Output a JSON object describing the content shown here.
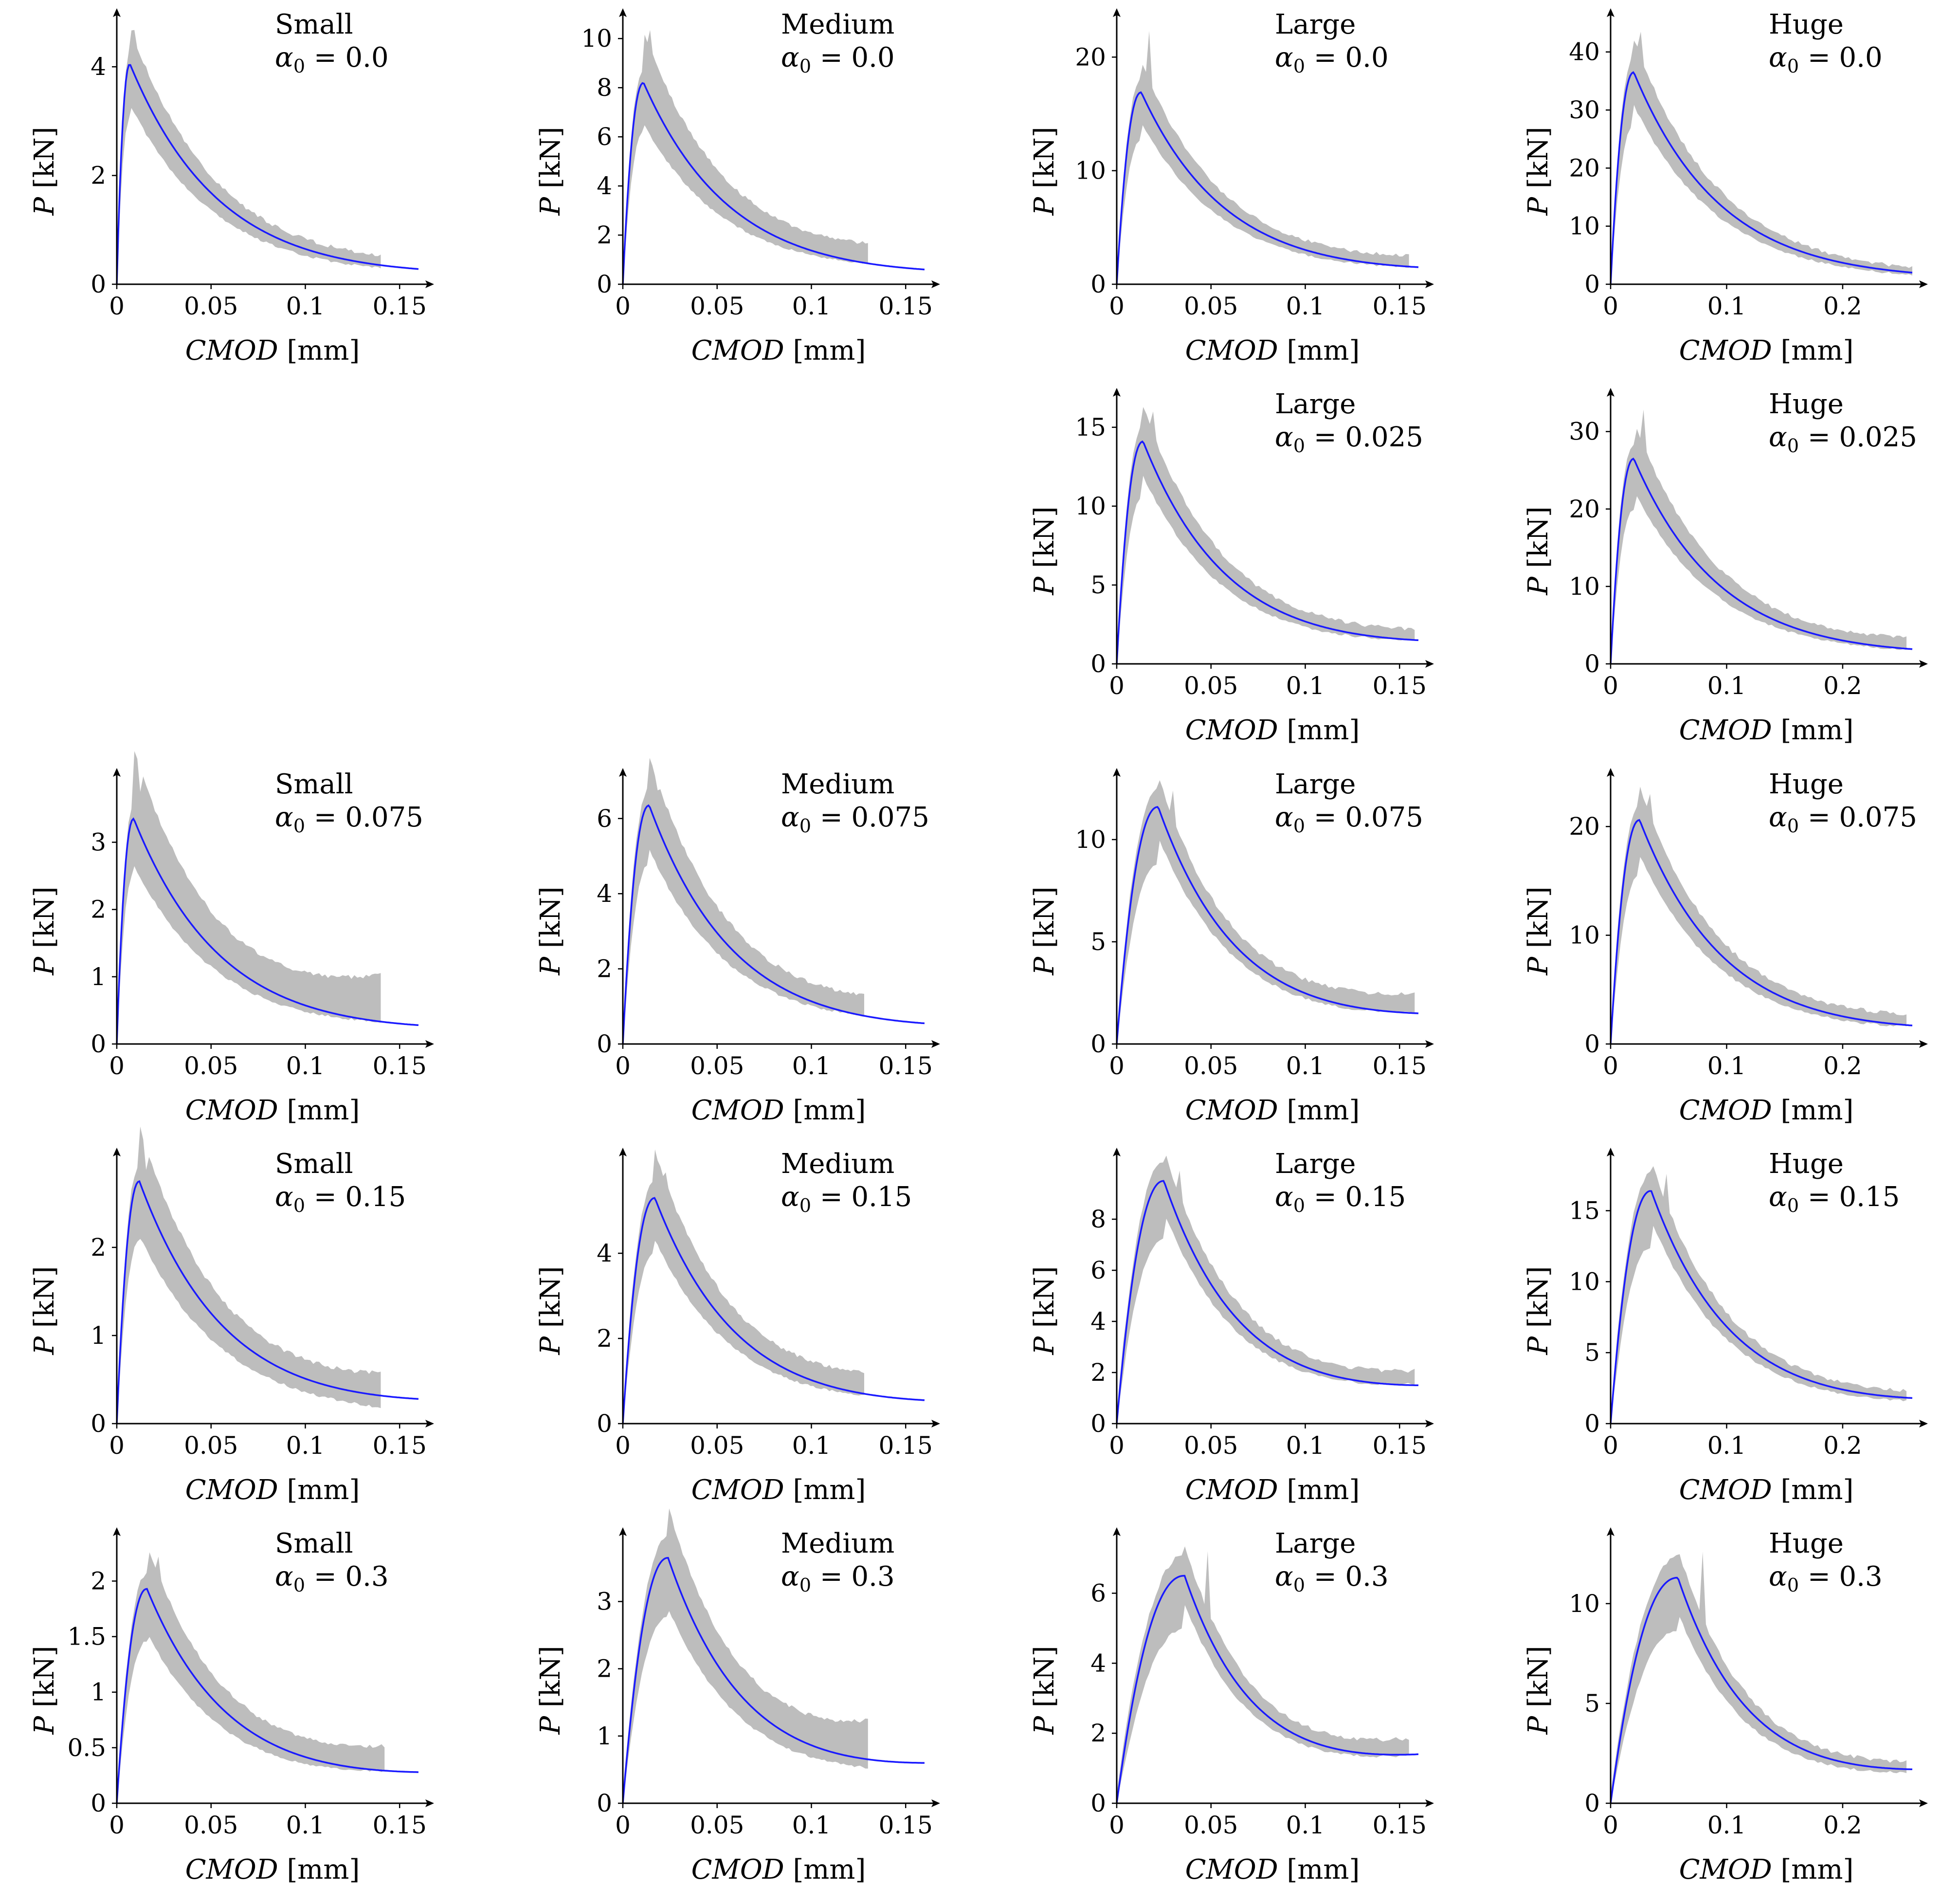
{
  "figure": {
    "axis_text": {
      "x_var": "CMOD",
      "x_unit": "[mm]",
      "y_var": "P",
      "y_unit": "[kN]",
      "alpha_symbol": "α",
      "alpha_sub": "0"
    },
    "colors": {
      "band": "#bdbdbd",
      "model": "#1a1aff",
      "axes": "#000000"
    },
    "rows": 5,
    "cols": 4
  },
  "chart_data": [
    {
      "id": "small-a0",
      "type": "line",
      "row": 0,
      "col": 0,
      "size": "Small",
      "alpha_label": "= 0.0",
      "xlabel": "CMOD [mm]",
      "ylabel": "P [kN]",
      "xlim": [
        0,
        0.16
      ],
      "ylim": [
        0,
        4.7
      ],
      "xticks": [
        0,
        0.05,
        0.1,
        0.15
      ],
      "xtick_labels": [
        "0",
        "0.05",
        "0.1",
        "0.15"
      ],
      "yticks": [
        0,
        2,
        4
      ],
      "ytick_labels": [
        "0",
        "2",
        "4"
      ],
      "peak_x": 0.007,
      "peak_y": 4.05,
      "end_x": 0.16,
      "end_y": 0.28,
      "band_end_x": 0.14,
      "band_end_lo": 0.32,
      "band_end_hi": 0.5,
      "band_lo_f": 0.82,
      "band_hi_f": 1.16,
      "spike_y": 4.7
    },
    {
      "id": "medium-a0",
      "type": "line",
      "row": 0,
      "col": 1,
      "size": "Medium",
      "alpha_label": "= 0.0",
      "xlabel": "CMOD [mm]",
      "ylabel": "P [kN]",
      "xlim": [
        0,
        0.16
      ],
      "ylim": [
        0,
        10.4
      ],
      "xticks": [
        0,
        0.05,
        0.1,
        0.15
      ],
      "xtick_labels": [
        "0",
        "0.05",
        "0.1",
        "0.15"
      ],
      "yticks": [
        0,
        2,
        4,
        6,
        8,
        10
      ],
      "ytick_labels": [
        "0",
        "2",
        "4",
        "6",
        "8",
        "10"
      ],
      "peak_x": 0.011,
      "peak_y": 8.2,
      "end_x": 0.16,
      "end_y": 0.6,
      "band_end_x": 0.13,
      "band_end_lo": 0.9,
      "band_end_hi": 1.6,
      "band_lo_f": 0.8,
      "band_hi_f": 1.25,
      "spike_y": 10.4
    },
    {
      "id": "large-a0",
      "type": "line",
      "row": 0,
      "col": 2,
      "size": "Large",
      "alpha_label": "= 0.0",
      "xlabel": "CMOD [mm]",
      "ylabel": "P [kN]",
      "xlim": [
        0,
        0.16
      ],
      "ylim": [
        0,
        22.5
      ],
      "xticks": [
        0,
        0.05,
        0.1,
        0.15
      ],
      "xtick_labels": [
        "0",
        "0.05",
        "0.1",
        "0.15"
      ],
      "yticks": [
        0,
        10,
        20
      ],
      "ytick_labels": [
        "0",
        "10",
        "20"
      ],
      "peak_x": 0.013,
      "peak_y": 16.9,
      "end_x": 0.16,
      "end_y": 1.5,
      "band_end_x": 0.155,
      "band_end_lo": 1.6,
      "band_end_hi": 2.4,
      "band_lo_f": 0.85,
      "band_hi_f": 1.15,
      "spike_y": 22.3
    },
    {
      "id": "huge-a0",
      "type": "line",
      "row": 0,
      "col": 3,
      "size": "Huge",
      "alpha_label": "= 0.0",
      "xlabel": "CMOD [mm]",
      "ylabel": "P [kN]",
      "xlim": [
        0,
        0.26
      ],
      "ylim": [
        0,
        44
      ],
      "xticks": [
        0,
        0.1,
        0.2
      ],
      "xtick_labels": [
        "0",
        "0.1",
        "0.2"
      ],
      "yticks": [
        0,
        10,
        20,
        30,
        40
      ],
      "ytick_labels": [
        "0",
        "10",
        "20",
        "30",
        "40"
      ],
      "peak_x": 0.02,
      "peak_y": 36.5,
      "end_x": 0.26,
      "end_y": 2.0,
      "band_end_x": 0.26,
      "band_end_lo": 1.8,
      "band_end_hi": 2.6,
      "band_lo_f": 0.85,
      "band_hi_f": 1.15,
      "spike_y": 43.5
    },
    {
      "id": "large-a025",
      "type": "line",
      "row": 1,
      "col": 2,
      "size": "Large",
      "alpha_label": "= 0.025",
      "xlabel": "CMOD [mm]",
      "ylabel": "P [kN]",
      "xlim": [
        0,
        0.16
      ],
      "ylim": [
        0,
        16.2
      ],
      "xticks": [
        0,
        0.05,
        0.1,
        0.15
      ],
      "xtick_labels": [
        "0",
        "0.05",
        "0.1",
        "0.15"
      ],
      "yticks": [
        0,
        5,
        10,
        15
      ],
      "ytick_labels": [
        "0",
        "5",
        "10",
        "15"
      ],
      "peak_x": 0.014,
      "peak_y": 14.1,
      "end_x": 0.16,
      "end_y": 1.5,
      "band_end_x": 0.158,
      "band_end_lo": 1.6,
      "band_end_hi": 2.1,
      "band_lo_f": 0.85,
      "band_hi_f": 1.15,
      "spike_y": 16.0
    },
    {
      "id": "huge-a025",
      "type": "line",
      "row": 1,
      "col": 3,
      "size": "Huge",
      "alpha_label": "= 0.025",
      "xlabel": "CMOD [mm]",
      "ylabel": "P [kN]",
      "xlim": [
        0,
        0.26
      ],
      "ylim": [
        0,
        33
      ],
      "xticks": [
        0,
        0.1,
        0.2
      ],
      "xtick_labels": [
        "0",
        "0.1",
        "0.2"
      ],
      "yticks": [
        0,
        10,
        20,
        30
      ],
      "ytick_labels": [
        "0",
        "10",
        "20",
        "30"
      ],
      "peak_x": 0.02,
      "peak_y": 26.5,
      "end_x": 0.26,
      "end_y": 1.9,
      "band_end_x": 0.255,
      "band_end_lo": 2.0,
      "band_end_hi": 3.2,
      "band_lo_f": 0.85,
      "band_hi_f": 1.18,
      "spike_y": 33.0
    },
    {
      "id": "small-a075",
      "type": "line",
      "row": 2,
      "col": 0,
      "size": "Small",
      "alpha_label": "= 0.075",
      "xlabel": "CMOD [mm]",
      "ylabel": "P [kN]",
      "xlim": [
        0,
        0.16
      ],
      "ylim": [
        0,
        3.8
      ],
      "xticks": [
        0,
        0.05,
        0.1,
        0.15
      ],
      "xtick_labels": [
        "0",
        "0.05",
        "0.1",
        "0.15"
      ],
      "yticks": [
        0,
        1,
        2,
        3
      ],
      "ytick_labels": [
        "0",
        "1",
        "2",
        "3"
      ],
      "peak_x": 0.009,
      "peak_y": 3.35,
      "end_x": 0.16,
      "end_y": 0.28,
      "band_end_x": 0.14,
      "band_end_lo": 0.35,
      "band_end_hi": 1.0,
      "band_lo_f": 0.8,
      "band_hi_f": 1.3,
      "spike_y": 3.75
    },
    {
      "id": "medium-a075",
      "type": "line",
      "row": 2,
      "col": 1,
      "size": "Medium",
      "alpha_label": "= 0.075",
      "xlabel": "CMOD [mm]",
      "ylabel": "P [kN]",
      "xlim": [
        0,
        0.16
      ],
      "ylim": [
        0,
        6.8
      ],
      "xticks": [
        0,
        0.05,
        0.1,
        0.15
      ],
      "xtick_labels": [
        "0",
        "0.05",
        "0.1",
        "0.15"
      ],
      "yticks": [
        0,
        2,
        4,
        6
      ],
      "ytick_labels": [
        "0",
        "2",
        "4",
        "6"
      ],
      "peak_x": 0.014,
      "peak_y": 6.35,
      "end_x": 0.16,
      "end_y": 0.55,
      "band_end_x": 0.128,
      "band_end_lo": 0.8,
      "band_end_hi": 1.25,
      "band_lo_f": 0.82,
      "band_hi_f": 1.2,
      "spike_y": 6.75
    },
    {
      "id": "large-a075",
      "type": "line",
      "row": 2,
      "col": 2,
      "size": "Large",
      "alpha_label": "= 0.075",
      "xlabel": "CMOD [mm]",
      "ylabel": "P [kN]",
      "xlim": [
        0,
        0.16
      ],
      "ylim": [
        0,
        12.5
      ],
      "xticks": [
        0,
        0.05,
        0.1,
        0.15
      ],
      "xtick_labels": [
        "0",
        "0.05",
        "0.1",
        "0.15"
      ],
      "yticks": [
        0,
        5,
        10
      ],
      "ytick_labels": [
        "0",
        "5",
        "10"
      ],
      "peak_x": 0.022,
      "peak_y": 11.6,
      "end_x": 0.16,
      "end_y": 1.5,
      "band_end_x": 0.158,
      "band_end_lo": 1.6,
      "band_end_hi": 2.4,
      "band_lo_f": 0.88,
      "band_hi_f": 1.12,
      "spike_y": 12.4
    },
    {
      "id": "huge-a075",
      "type": "line",
      "row": 2,
      "col": 3,
      "size": "Huge",
      "alpha_label": "= 0.075",
      "xlabel": "CMOD [mm]",
      "ylabel": "P [kN]",
      "xlim": [
        0,
        0.26
      ],
      "ylim": [
        0,
        23.5
      ],
      "xticks": [
        0,
        0.1,
        0.2
      ],
      "xtick_labels": [
        "0",
        "0.1",
        "0.2"
      ],
      "yticks": [
        0,
        10,
        20
      ],
      "ytick_labels": [
        "0",
        "10",
        "20"
      ],
      "peak_x": 0.025,
      "peak_y": 20.6,
      "end_x": 0.26,
      "end_y": 1.7,
      "band_end_x": 0.255,
      "band_end_lo": 1.7,
      "band_end_hi": 2.6,
      "band_lo_f": 0.85,
      "band_hi_f": 1.14,
      "spike_y": 23.0
    },
    {
      "id": "small-a15",
      "type": "line",
      "row": 3,
      "col": 0,
      "size": "Small",
      "alpha_label": "= 0.15",
      "xlabel": "CMOD [mm]",
      "ylabel": "P [kN]",
      "xlim": [
        0,
        0.16
      ],
      "ylim": [
        0,
        2.9
      ],
      "xticks": [
        0,
        0.05,
        0.1,
        0.15
      ],
      "xtick_labels": [
        "0",
        "0.05",
        "0.1",
        "0.15"
      ],
      "yticks": [
        0,
        1,
        2
      ],
      "ytick_labels": [
        "0",
        "1",
        "2"
      ],
      "peak_x": 0.012,
      "peak_y": 2.75,
      "end_x": 0.16,
      "end_y": 0.28,
      "band_end_x": 0.14,
      "band_end_lo": 0.2,
      "band_end_hi": 0.55,
      "band_lo_f": 0.78,
      "band_hi_f": 1.22,
      "spike_y": 2.88
    },
    {
      "id": "medium-a15",
      "type": "line",
      "row": 3,
      "col": 1,
      "size": "Medium",
      "alpha_label": "= 0.15",
      "xlabel": "CMOD [mm]",
      "ylabel": "P [kN]",
      "xlim": [
        0,
        0.16
      ],
      "ylim": [
        0,
        6.0
      ],
      "xticks": [
        0,
        0.05,
        0.1,
        0.15
      ],
      "xtick_labels": [
        "0",
        "0.05",
        "0.1",
        "0.15"
      ],
      "yticks": [
        0,
        2,
        4
      ],
      "ytick_labels": [
        "0",
        "2",
        "4"
      ],
      "peak_x": 0.017,
      "peak_y": 5.3,
      "end_x": 0.16,
      "end_y": 0.55,
      "band_end_x": 0.128,
      "band_end_lo": 0.7,
      "band_end_hi": 1.15,
      "band_lo_f": 0.82,
      "band_hi_f": 1.2,
      "spike_y": 5.9
    },
    {
      "id": "large-a15",
      "type": "line",
      "row": 3,
      "col": 2,
      "size": "Large",
      "alpha_label": "= 0.15",
      "xlabel": "CMOD [mm]",
      "ylabel": "P [kN]",
      "xlim": [
        0,
        0.16
      ],
      "ylim": [
        0,
        10.0
      ],
      "xticks": [
        0,
        0.05,
        0.1,
        0.15
      ],
      "xtick_labels": [
        "0",
        "0.05",
        "0.1",
        "0.15"
      ],
      "yticks": [
        0,
        2,
        4,
        6,
        8
      ],
      "ytick_labels": [
        "0",
        "2",
        "4",
        "6",
        "8"
      ],
      "peak_x": 0.025,
      "peak_y": 9.5,
      "end_x": 0.16,
      "end_y": 1.5,
      "band_end_x": 0.158,
      "band_end_lo": 1.6,
      "band_end_hi": 2.0,
      "band_lo_f": 0.88,
      "band_hi_f": 1.12,
      "spike_y": 9.9
    },
    {
      "id": "huge-a15",
      "type": "line",
      "row": 3,
      "col": 3,
      "size": "Huge",
      "alpha_label": "= 0.15",
      "xlabel": "CMOD [mm]",
      "ylabel": "P [kN]",
      "xlim": [
        0,
        0.26
      ],
      "ylim": [
        0,
        18.0
      ],
      "xticks": [
        0,
        0.1,
        0.2
      ],
      "xtick_labels": [
        "0",
        "0.1",
        "0.2"
      ],
      "yticks": [
        0,
        5,
        10,
        15
      ],
      "ytick_labels": [
        "0",
        "5",
        "10",
        "15"
      ],
      "peak_x": 0.035,
      "peak_y": 16.4,
      "end_x": 0.26,
      "end_y": 1.8,
      "band_end_x": 0.255,
      "band_end_lo": 1.7,
      "band_end_hi": 2.2,
      "band_lo_f": 0.88,
      "band_hi_f": 1.12,
      "spike_y": 17.6
    },
    {
      "id": "small-a3",
      "type": "line",
      "row": 4,
      "col": 0,
      "size": "Small",
      "alpha_label": "= 0.3",
      "xlabel": "CMOD [mm]",
      "ylabel": "P [kN]",
      "xlim": [
        0,
        0.16
      ],
      "ylim": [
        0,
        2.3
      ],
      "xticks": [
        0,
        0.05,
        0.1,
        0.15
      ],
      "xtick_labels": [
        "0",
        "0.05",
        "0.1",
        "0.15"
      ],
      "yticks": [
        0,
        0.5,
        1,
        1.5,
        2
      ],
      "ytick_labels": [
        "0",
        "0.5",
        "1",
        "1.5",
        "2"
      ],
      "peak_x": 0.016,
      "peak_y": 1.93,
      "end_x": 0.16,
      "end_y": 0.28,
      "band_end_x": 0.142,
      "band_end_lo": 0.3,
      "band_end_hi": 0.5,
      "band_lo_f": 0.8,
      "band_hi_f": 1.2,
      "spike_y": 2.22
    },
    {
      "id": "medium-a3",
      "type": "line",
      "row": 4,
      "col": 1,
      "size": "Medium",
      "alpha_label": "= 0.3",
      "xlabel": "CMOD [mm]",
      "ylabel": "P [kN]",
      "xlim": [
        0,
        0.16
      ],
      "ylim": [
        0,
        3.8
      ],
      "xticks": [
        0,
        0.05,
        0.1,
        0.15
      ],
      "xtick_labels": [
        "0",
        "0.05",
        "0.1",
        "0.15"
      ],
      "yticks": [
        0,
        1,
        2,
        3
      ],
      "ytick_labels": [
        "0",
        "1",
        "2",
        "3"
      ],
      "peak_x": 0.024,
      "peak_y": 3.65,
      "end_x": 0.16,
      "end_y": 0.6,
      "band_end_x": 0.13,
      "band_end_lo": 0.55,
      "band_end_hi": 1.2,
      "band_lo_f": 0.8,
      "band_hi_f": 1.2,
      "spike_y": 3.7
    },
    {
      "id": "large-a3",
      "type": "line",
      "row": 4,
      "col": 2,
      "size": "Large",
      "alpha_label": "= 0.3",
      "xlabel": "CMOD [mm]",
      "ylabel": "P [kN]",
      "xlim": [
        0,
        0.16
      ],
      "ylim": [
        0,
        7.3
      ],
      "xticks": [
        0,
        0.05,
        0.1,
        0.15
      ],
      "xtick_labels": [
        "0",
        "0.05",
        "0.1",
        "0.15"
      ],
      "yticks": [
        0,
        2,
        4,
        6
      ],
      "ytick_labels": [
        "0",
        "2",
        "4",
        "6"
      ],
      "peak_x": 0.036,
      "peak_y": 6.5,
      "end_x": 0.16,
      "end_y": 1.4,
      "band_end_x": 0.155,
      "band_end_lo": 1.4,
      "band_end_hi": 1.8,
      "band_lo_f": 0.88,
      "band_hi_f": 1.12,
      "spike_y": 7.2
    },
    {
      "id": "huge-a3",
      "type": "line",
      "row": 4,
      "col": 3,
      "size": "Huge",
      "alpha_label": "= 0.3",
      "xlabel": "CMOD [mm]",
      "ylabel": "P [kN]",
      "xlim": [
        0,
        0.26
      ],
      "ylim": [
        0,
        12.8
      ],
      "xticks": [
        0,
        0.1,
        0.2
      ],
      "xtick_labels": [
        "0",
        "0.1",
        "0.2"
      ],
      "yticks": [
        0,
        5,
        10
      ],
      "ytick_labels": [
        "0",
        "5",
        "10"
      ],
      "peak_x": 0.058,
      "peak_y": 11.3,
      "end_x": 0.26,
      "end_y": 1.7,
      "band_end_x": 0.255,
      "band_end_lo": 1.6,
      "band_end_hi": 2.0,
      "band_lo_f": 0.85,
      "band_hi_f": 1.12,
      "spike_y": 12.6
    }
  ]
}
